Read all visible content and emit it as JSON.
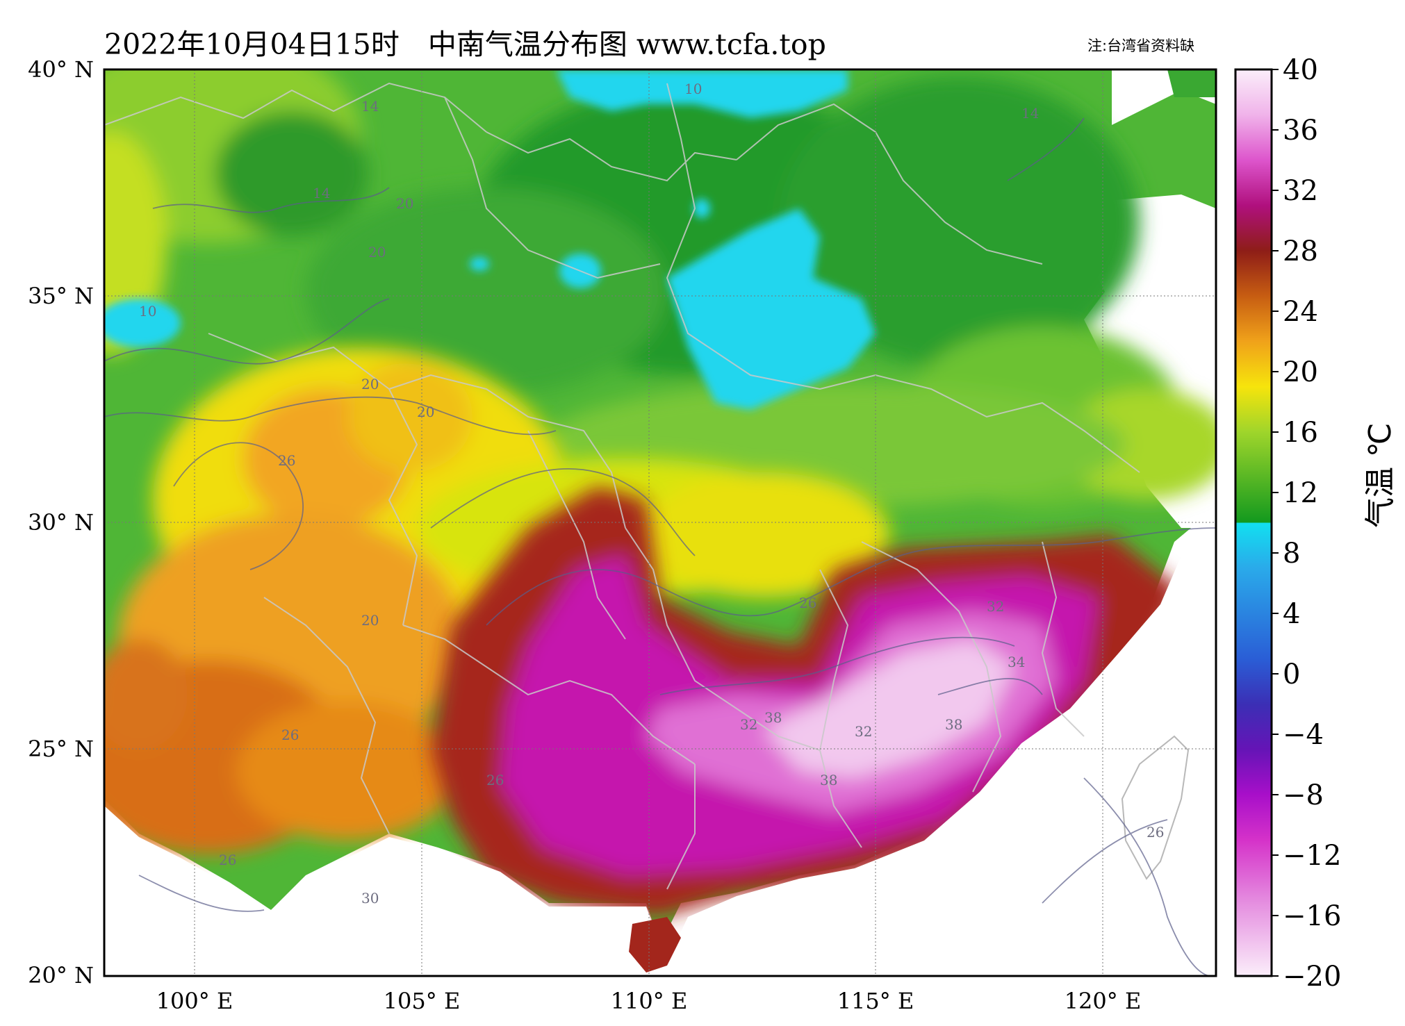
{
  "title": "2022年10月04日15时　中南气温分布图 www.tcfa.top",
  "note": "注:台湾省资料缺",
  "lat_labels": [
    "40° N",
    "35° N",
    "30° N",
    "25° N",
    "20° N"
  ],
  "lon_labels": [
    "100° E",
    "105° E",
    "110° E",
    "115° E",
    "120° E"
  ],
  "colorbar": {
    "unit": "气温 ℃",
    "ticks": [
      "40",
      "36",
      "32",
      "28",
      "24",
      "20",
      "16",
      "12",
      "8",
      "4",
      "0",
      "−4",
      "−8",
      "−12",
      "−16",
      "−20"
    ]
  },
  "contour_labels": [
    "14",
    "14",
    "20",
    "20",
    "20",
    "26",
    "26",
    "26",
    "26",
    "26",
    "30",
    "32",
    "32",
    "32",
    "34",
    "38",
    "38",
    "38",
    "10",
    "10",
    "14",
    "20",
    "20",
    "26"
  ],
  "colors": {
    "pink_light": "#f5d8f2",
    "magenta": "#c51bb4",
    "maroon": "#93241b",
    "orange": "#e07a10",
    "yellow": "#efe20b",
    "lime": "#a6d728",
    "green": "#35a631",
    "cyan": "#1fd8ef",
    "sea": "#ffffff"
  }
}
